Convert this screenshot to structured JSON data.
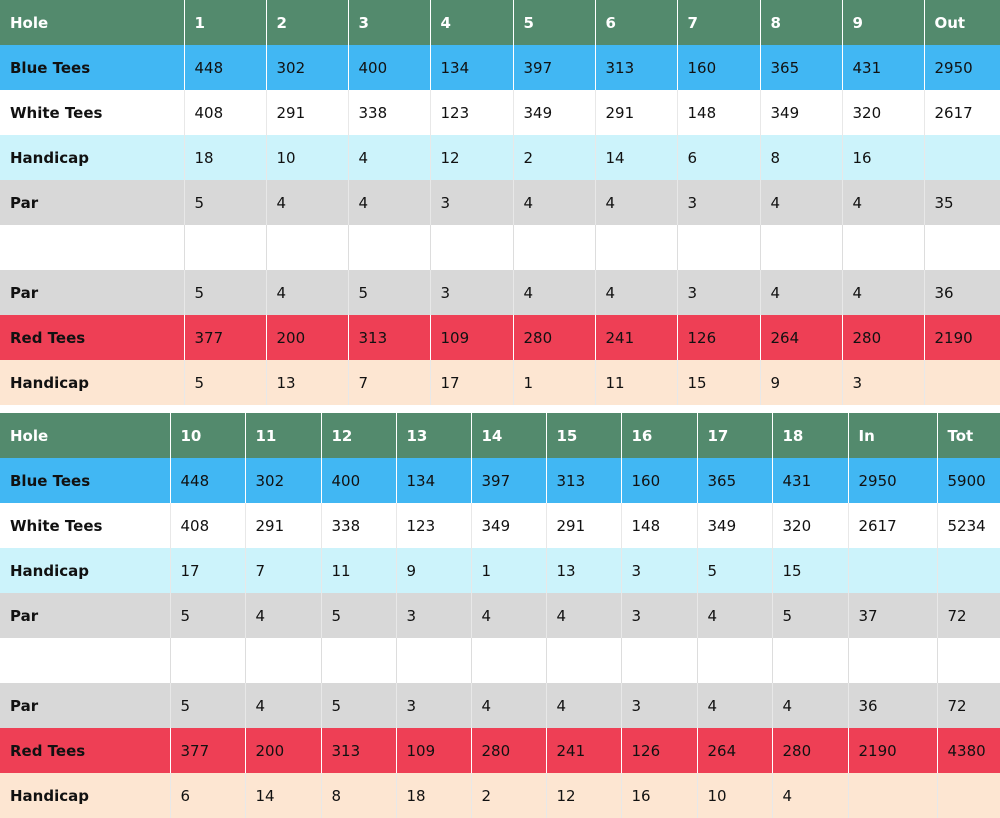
{
  "colors": {
    "header": "#538a6d",
    "blue_tees": "#41b7f3",
    "white_tees": "#ffffff",
    "handicap_front": "#ccf3fb",
    "par": "#d8d8d8",
    "empty": "#ffffff",
    "red_tees": "#ee3f55",
    "handicap_red": "#fde6d2"
  },
  "front_nine": {
    "columns": [
      "Hole",
      "1",
      "2",
      "3",
      "4",
      "5",
      "6",
      "7",
      "8",
      "9",
      "Out"
    ],
    "rows": [
      {
        "key": "hdr",
        "color": "header",
        "cells": [
          "Hole",
          "1",
          "2",
          "3",
          "4",
          "5",
          "6",
          "7",
          "8",
          "9",
          "Out"
        ]
      },
      {
        "key": "blue",
        "color": "blue_tees",
        "cells": [
          "Blue Tees",
          "448",
          "302",
          "400",
          "134",
          "397",
          "313",
          "160",
          "365",
          "431",
          "2950"
        ]
      },
      {
        "key": "white",
        "color": "white_tees",
        "cells": [
          "White Tees",
          "408",
          "291",
          "338",
          "123",
          "349",
          "291",
          "148",
          "349",
          "320",
          "2617"
        ]
      },
      {
        "key": "hcp",
        "color": "handicap_front",
        "cells": [
          "Handicap",
          "18",
          "10",
          "4",
          "12",
          "2",
          "14",
          "6",
          "8",
          "16",
          ""
        ]
      },
      {
        "key": "par",
        "color": "par",
        "cells": [
          "Par",
          "5",
          "4",
          "4",
          "3",
          "4",
          "4",
          "3",
          "4",
          "4",
          "35"
        ]
      },
      {
        "key": "empty",
        "color": "empty",
        "cells": [
          "",
          "",
          "",
          "",
          "",
          "",
          "",
          "",
          "",
          "",
          ""
        ]
      },
      {
        "key": "par",
        "color": "par",
        "cells": [
          "Par",
          "5",
          "4",
          "5",
          "3",
          "4",
          "4",
          "3",
          "4",
          "4",
          "36"
        ]
      },
      {
        "key": "red",
        "color": "red_tees",
        "cells": [
          "Red Tees",
          "377",
          "200",
          "313",
          "109",
          "280",
          "241",
          "126",
          "264",
          "280",
          "2190"
        ]
      },
      {
        "key": "hcp",
        "color": "handicap_red",
        "cells": [
          "Handicap",
          "5",
          "13",
          "7",
          "17",
          "1",
          "11",
          "15",
          "9",
          "3",
          ""
        ]
      }
    ]
  },
  "back_nine": {
    "columns": [
      "Hole",
      "10",
      "11",
      "12",
      "13",
      "14",
      "15",
      "16",
      "17",
      "18",
      "In",
      "Tot"
    ],
    "rows": [
      {
        "key": "hdr",
        "color": "header",
        "cells": [
          "Hole",
          "10",
          "11",
          "12",
          "13",
          "14",
          "15",
          "16",
          "17",
          "18",
          "In",
          "Tot"
        ]
      },
      {
        "key": "blue",
        "color": "blue_tees",
        "cells": [
          "Blue Tees",
          "448",
          "302",
          "400",
          "134",
          "397",
          "313",
          "160",
          "365",
          "431",
          "2950",
          "5900"
        ]
      },
      {
        "key": "white",
        "color": "white_tees",
        "cells": [
          "White Tees",
          "408",
          "291",
          "338",
          "123",
          "349",
          "291",
          "148",
          "349",
          "320",
          "2617",
          "5234"
        ]
      },
      {
        "key": "hcp",
        "color": "handicap_front",
        "cells": [
          "Handicap",
          "17",
          "7",
          "11",
          "9",
          "1",
          "13",
          "3",
          "5",
          "15",
          "",
          ""
        ]
      },
      {
        "key": "par",
        "color": "par",
        "cells": [
          "Par",
          "5",
          "4",
          "5",
          "3",
          "4",
          "4",
          "3",
          "4",
          "5",
          "37",
          "72"
        ]
      },
      {
        "key": "empty",
        "color": "empty",
        "cells": [
          "",
          "",
          "",
          "",
          "",
          "",
          "",
          "",
          "",
          "",
          "",
          ""
        ]
      },
      {
        "key": "par",
        "color": "par",
        "cells": [
          "Par",
          "5",
          "4",
          "5",
          "3",
          "4",
          "4",
          "3",
          "4",
          "4",
          "36",
          "72"
        ]
      },
      {
        "key": "red",
        "color": "red_tees",
        "cells": [
          "Red Tees",
          "377",
          "200",
          "313",
          "109",
          "280",
          "241",
          "126",
          "264",
          "280",
          "2190",
          "4380"
        ]
      },
      {
        "key": "hcp",
        "color": "handicap_red",
        "cells": [
          "Handicap",
          "6",
          "14",
          "8",
          "18",
          "2",
          "12",
          "16",
          "10",
          "4",
          "",
          ""
        ]
      }
    ]
  }
}
